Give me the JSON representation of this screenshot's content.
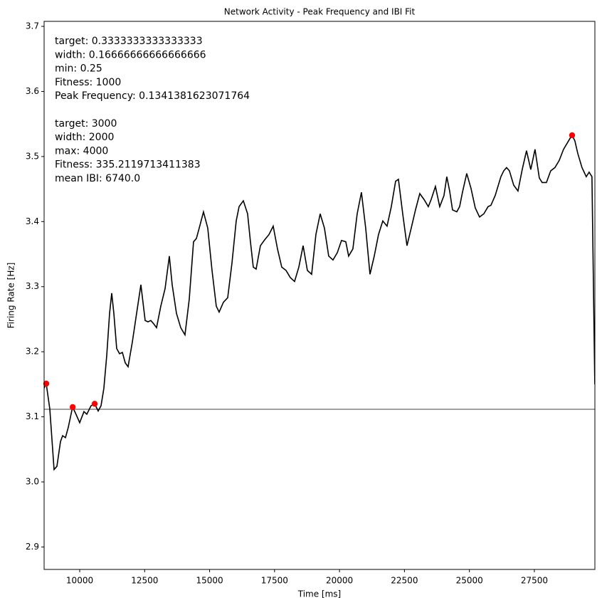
{
  "chart_data": {
    "type": "line",
    "title": "Network Activity - Peak Frequency and IBI Fit",
    "xlabel": "Time [ms]",
    "ylabel": "Firing Rate [Hz]",
    "xlim": [
      8630,
      29830
    ],
    "ylim": [
      2.8655,
      3.7077
    ],
    "xticks": [
      10000,
      12500,
      15000,
      17500,
      20000,
      22500,
      25000,
      27500
    ],
    "yticks": [
      2.9,
      {
        "value": 3,
        "label": "3.0"
      },
      3.1,
      3.2,
      3.3,
      3.4,
      3.5,
      3.6,
      3.7
    ],
    "line": {
      "color": "#000000",
      "x": [
        8630,
        8712,
        8849,
        9013,
        9123,
        9260,
        9342,
        9452,
        9561,
        9725,
        9835,
        9999,
        10164,
        10273,
        10437,
        10574,
        10711,
        10821,
        10930,
        11040,
        11150,
        11232,
        11314,
        11423,
        11533,
        11642,
        11752,
        11862,
        12026,
        12190,
        12355,
        12519,
        12628,
        12738,
        12847,
        12957,
        13121,
        13286,
        13450,
        13559,
        13724,
        13888,
        14052,
        14217,
        14381,
        14491,
        14600,
        14764,
        14929,
        15093,
        15257,
        15367,
        15531,
        15696,
        15860,
        16024,
        16134,
        16298,
        16462,
        16572,
        16681,
        16791,
        16955,
        17120,
        17284,
        17448,
        17613,
        17777,
        17941,
        18106,
        18270,
        18434,
        18599,
        18763,
        18927,
        19091,
        19256,
        19420,
        19584,
        19749,
        19913,
        20077,
        20242,
        20351,
        20515,
        20680,
        20844,
        21008,
        21173,
        21337,
        21501,
        21666,
        21830,
        21994,
        22159,
        22268,
        22433,
        22597,
        22761,
        22925,
        23090,
        23254,
        23418,
        23528,
        23692,
        23857,
        24021,
        24130,
        24240,
        24350,
        24514,
        24623,
        24733,
        24897,
        25062,
        25226,
        25390,
        25555,
        25719,
        25828,
        25993,
        26212,
        26321,
        26431,
        26540,
        26705,
        26869,
        27033,
        27198,
        27362,
        27526,
        27691,
        27800,
        27964,
        28129,
        28293,
        28457,
        28622,
        28786,
        28950,
        29060,
        29170,
        29334,
        29498,
        29608,
        29717,
        29827
      ],
      "values": [
        3.144,
        3.151,
        3.112,
        3.019,
        3.024,
        3.062,
        3.071,
        3.068,
        3.084,
        3.115,
        3.106,
        3.091,
        3.108,
        3.104,
        3.117,
        3.12,
        3.109,
        3.117,
        3.144,
        3.194,
        3.259,
        3.29,
        3.259,
        3.205,
        3.197,
        3.199,
        3.183,
        3.177,
        3.215,
        3.259,
        3.303,
        3.248,
        3.246,
        3.248,
        3.243,
        3.237,
        3.27,
        3.297,
        3.347,
        3.303,
        3.259,
        3.237,
        3.226,
        3.281,
        3.369,
        3.374,
        3.39,
        3.415,
        3.39,
        3.325,
        3.27,
        3.261,
        3.276,
        3.283,
        3.336,
        3.401,
        3.423,
        3.432,
        3.412,
        3.369,
        3.33,
        3.327,
        3.363,
        3.372,
        3.38,
        3.393,
        3.358,
        3.33,
        3.325,
        3.314,
        3.308,
        3.33,
        3.363,
        3.325,
        3.319,
        3.38,
        3.412,
        3.39,
        3.347,
        3.341,
        3.352,
        3.371,
        3.369,
        3.347,
        3.358,
        3.412,
        3.445,
        3.39,
        3.319,
        3.347,
        3.38,
        3.401,
        3.393,
        3.423,
        3.462,
        3.465,
        3.412,
        3.363,
        3.39,
        3.418,
        3.443,
        3.434,
        3.423,
        3.434,
        3.454,
        3.423,
        3.44,
        3.469,
        3.447,
        3.418,
        3.415,
        3.423,
        3.445,
        3.474,
        3.451,
        3.421,
        3.407,
        3.412,
        3.423,
        3.425,
        3.44,
        3.469,
        3.478,
        3.483,
        3.478,
        3.456,
        3.447,
        3.48,
        3.509,
        3.48,
        3.511,
        3.467,
        3.46,
        3.46,
        3.478,
        3.483,
        3.494,
        3.511,
        3.522,
        3.533,
        3.524,
        3.505,
        3.483,
        3.469,
        3.476,
        3.469,
        3.15
      ]
    },
    "peaks": {
      "color": "#ff0000",
      "x": [
        8712,
        9730,
        10575,
        28953
      ],
      "values": [
        3.151,
        3.115,
        3.12,
        3.5326
      ]
    },
    "hline": {
      "value": 3.1116,
      "color": "#808080"
    },
    "annotations": [
      [
        "target: 0.3333333333333333",
        "width: 0.16666666666666666",
        "min: 0.25",
        "Fitness: 1000",
        "Peak Frequency: 0.1341381623071764"
      ],
      [
        "target: 3000",
        "width: 2000",
        "max: 4000",
        "Fitness: 335.2119713411383",
        "mean IBI: 6740.0"
      ]
    ]
  }
}
